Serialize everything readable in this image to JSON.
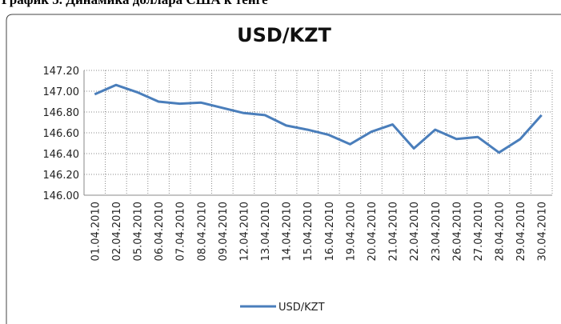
{
  "header": "График 5. Динамика доллара США к тенге",
  "chart_data": {
    "type": "line",
    "title": "USD/KZT",
    "categories": [
      "01.04.2010",
      "02.04.2010",
      "05.04.2010",
      "06.04.2010",
      "07.04.2010",
      "08.04.2010",
      "09.04.2010",
      "12.04.2010",
      "13.04.2010",
      "14.04.2010",
      "15.04.2010",
      "16.04.2010",
      "19.04.2010",
      "20.04.2010",
      "21.04.2010",
      "22.04.2010",
      "23.04.2010",
      "26.04.2010",
      "27.04.2010",
      "28.04.2010",
      "29.04.2010",
      "30.04.2010"
    ],
    "series": [
      {
        "name": "USD/KZT",
        "color": "#4a7ebb",
        "values": [
          146.97,
          147.06,
          146.99,
          146.9,
          146.88,
          146.89,
          146.84,
          146.79,
          146.77,
          146.67,
          146.63,
          146.58,
          146.49,
          146.61,
          146.68,
          146.45,
          146.63,
          146.54,
          146.56,
          146.41,
          146.54,
          146.77
        ]
      }
    ],
    "ylim": [
      146.0,
      147.2
    ],
    "yticks": [
      {
        "value": 146.0,
        "label": "146.00"
      },
      {
        "value": 146.2,
        "label": "146.20"
      },
      {
        "value": 146.4,
        "label": "146.40"
      },
      {
        "value": 146.6,
        "label": "146.60"
      },
      {
        "value": 146.8,
        "label": "146.80"
      },
      {
        "value": 147.0,
        "label": "147.00"
      },
      {
        "value": 147.2,
        "label": "147.20"
      }
    ],
    "grid": true,
    "legend": "bottom"
  }
}
